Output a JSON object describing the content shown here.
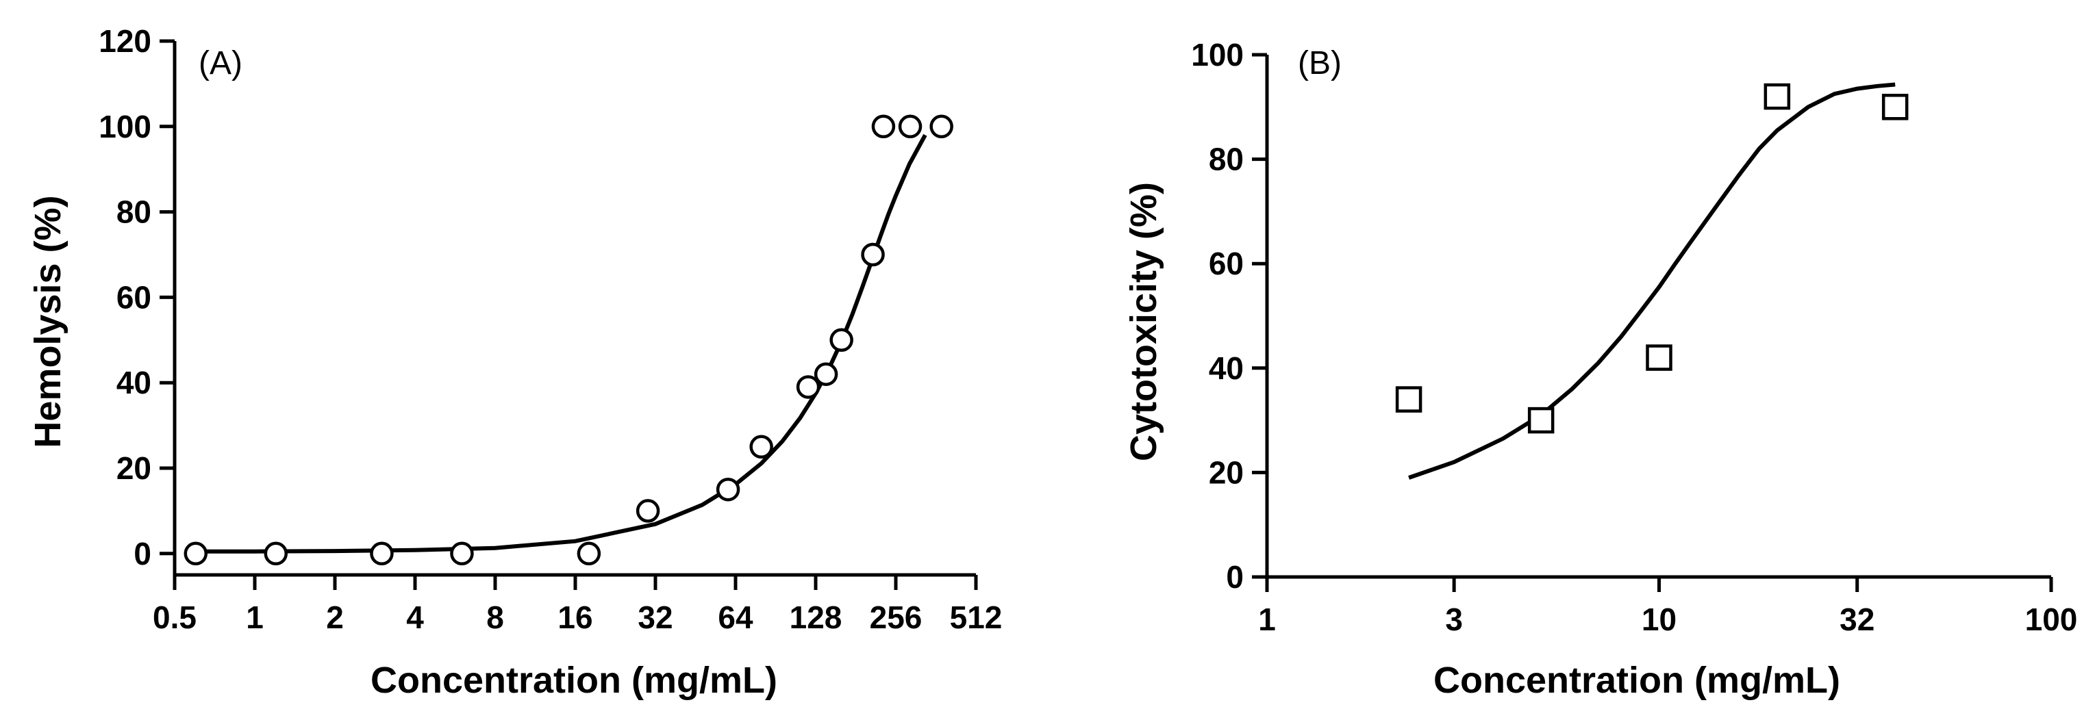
{
  "chart_data": [
    {
      "type": "scatter",
      "panel_label": "(A)",
      "xlabel": "Concentration (mg/mL)",
      "ylabel": "Hemolysis (%)",
      "x_scale": "log2",
      "xlim": [
        0.5,
        512
      ],
      "ylim": [
        -5,
        120
      ],
      "x_ticks": [
        0.5,
        1,
        2,
        4,
        8,
        16,
        32,
        64,
        128,
        256,
        512
      ],
      "x_tick_labels": [
        "0.5",
        "1",
        "2",
        "4",
        "8",
        "16",
        "32",
        "64",
        "128",
        "256",
        "512"
      ],
      "y_ticks": [
        0,
        20,
        40,
        60,
        80,
        100,
        120
      ],
      "y_tick_labels": [
        "0",
        "20",
        "40",
        "60",
        "80",
        "100",
        "120"
      ],
      "marker": "open-circle",
      "grid": false,
      "series": [
        {
          "x": [
            0.6,
            1.2,
            3,
            6,
            18,
            30,
            60,
            80,
            120,
            140,
            160,
            210,
            230,
            290,
            380
          ],
          "y": [
            0,
            0,
            0,
            0,
            0,
            10,
            15,
            25,
            39,
            42,
            50,
            70,
            100,
            100,
            100
          ]
        }
      ],
      "fit": {
        "x": [
          0.6,
          1,
          2,
          4,
          8,
          16,
          32,
          48,
          64,
          80,
          96,
          112,
          128,
          144,
          160,
          176,
          192,
          208,
          224,
          240,
          256,
          288,
          330
        ],
        "y": [
          0.5,
          0.5,
          0.6,
          0.8,
          1.3,
          2.9,
          6.9,
          11.4,
          16.2,
          21.1,
          26.3,
          31.8,
          37.5,
          43.5,
          49.7,
          56.1,
          62.5,
          68.6,
          74.3,
          79.4,
          83.8,
          91.2,
          98.0
        ]
      }
    },
    {
      "type": "scatter",
      "panel_label": "(B)",
      "xlabel": "Concentration (mg/mL)",
      "ylabel": "Cytotoxicity (%)",
      "x_scale": "log10",
      "xlim": [
        1,
        100
      ],
      "ylim": [
        0,
        100
      ],
      "x_ticks": [
        1,
        3,
        10,
        32,
        100
      ],
      "x_tick_labels": [
        "1",
        "3",
        "10",
        "32",
        "100"
      ],
      "y_ticks": [
        0,
        20,
        40,
        60,
        80,
        100
      ],
      "y_tick_labels": [
        "0",
        "20",
        "40",
        "60",
        "80",
        "100"
      ],
      "marker": "open-square",
      "grid": false,
      "series": [
        {
          "x": [
            2.3,
            5,
            10,
            20,
            40
          ],
          "y": [
            34,
            30,
            42,
            92,
            90
          ]
        }
      ],
      "fit": {
        "x": [
          2.3,
          3,
          4,
          5,
          6,
          7,
          8,
          9,
          10,
          11,
          12,
          14,
          16,
          18,
          20,
          24,
          28,
          32,
          36,
          40
        ],
        "y": [
          19,
          22,
          26.5,
          31,
          36,
          41,
          46,
          51,
          55.5,
          60,
          64,
          71,
          77,
          82,
          85.5,
          90,
          92.5,
          93.5,
          94,
          94.3
        ]
      }
    }
  ]
}
